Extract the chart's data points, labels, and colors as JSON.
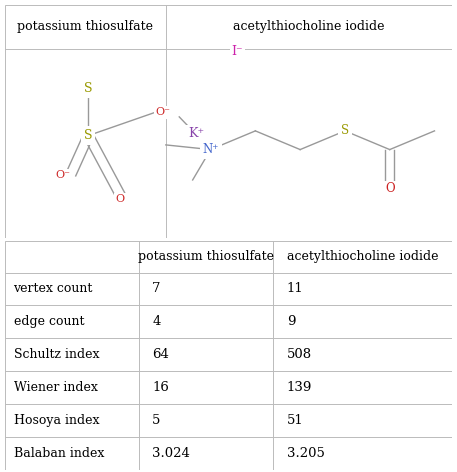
{
  "col1_header": "potassium thiosulfate",
  "col2_header": "acetylthiocholine iodide",
  "rows": [
    {
      "label": "vertex count",
      "val1": "7",
      "val2": "11"
    },
    {
      "label": "edge count",
      "val1": "4",
      "val2": "9"
    },
    {
      "label": "Schultz index",
      "val1": "64",
      "val2": "508"
    },
    {
      "label": "Wiener index",
      "val1": "16",
      "val2": "139"
    },
    {
      "label": "Hosoya index",
      "val1": "5",
      "val2": "51"
    },
    {
      "label": "Balaban index",
      "val1": "3.024",
      "val2": "3.205"
    }
  ],
  "bg_color": "#ffffff",
  "header_font_size": 9.0,
  "cell_font_size": 9.5,
  "label_font_size": 9.0,
  "line_color": "#bbbbbb",
  "text_color": "#000000",
  "font_family": "serif",
  "s_color": "#999900",
  "o_color": "#cc2222",
  "k_color": "#8844aa",
  "n_color": "#4466cc",
  "i_color": "#cc22aa",
  "bond_color": "#999999"
}
